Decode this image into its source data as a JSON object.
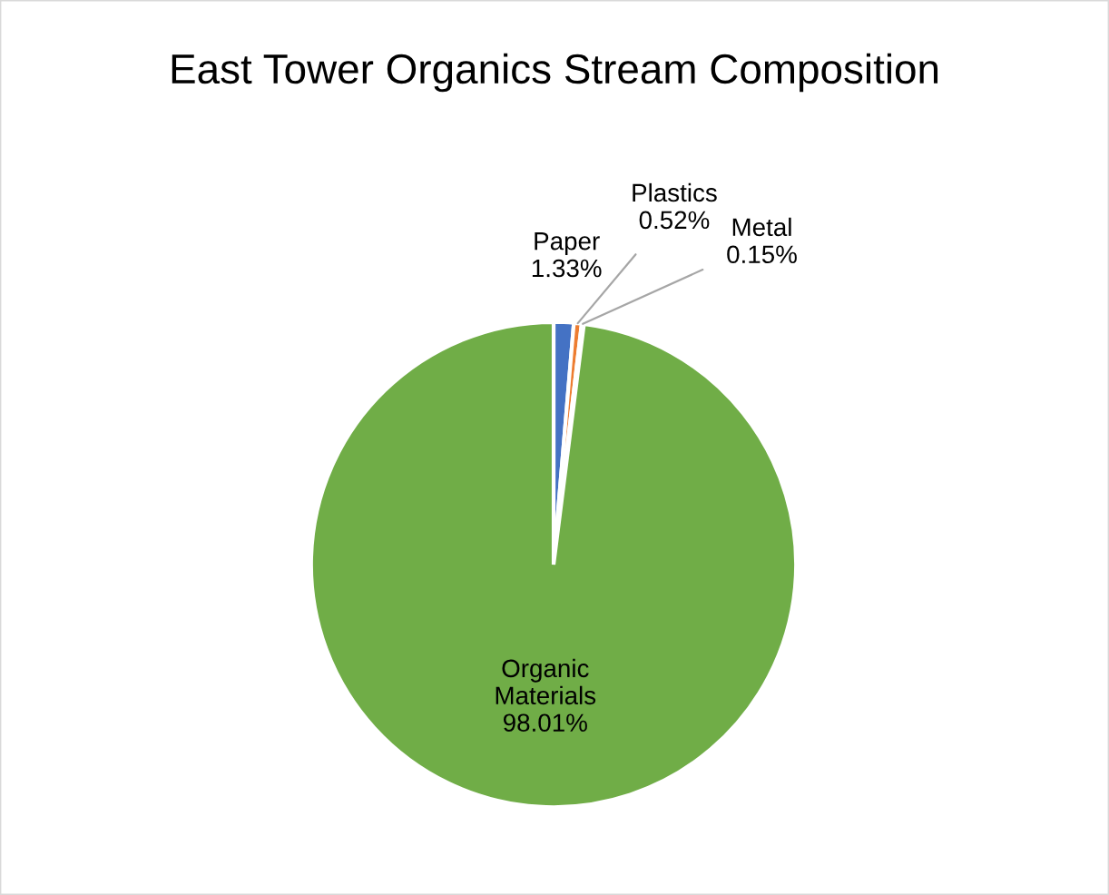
{
  "chart_data": {
    "type": "pie",
    "title": "East Tower Organics Stream Composition",
    "categories": [
      "Paper",
      "Plastics",
      "Metal",
      "Organic Materials"
    ],
    "values": [
      1.33,
      0.52,
      0.15,
      98.01
    ],
    "value_labels": [
      "1.33%",
      "0.52%",
      "0.15%",
      "98.01%"
    ],
    "colors": [
      "#4472c4",
      "#ed7d31",
      "#a5a5a5",
      "#70ad47"
    ]
  }
}
